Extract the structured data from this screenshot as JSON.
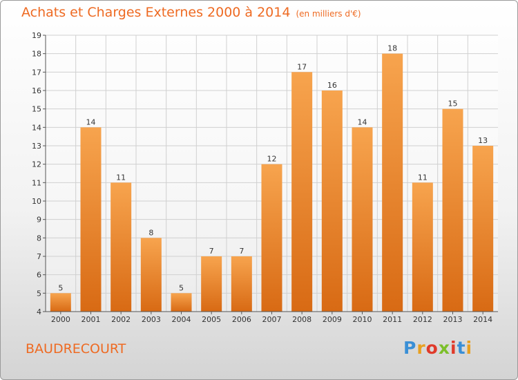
{
  "header": {
    "title": "Achats et Charges Externes 2000 à 2014",
    "unit": "(en milliers d'€)"
  },
  "footer": {
    "commune": "BAUDRECOURT",
    "logo_letters": [
      "P",
      "r",
      "o",
      "x",
      "i",
      "t",
      "i"
    ],
    "logo_colors": [
      "#3a8fd6",
      "#e8a020",
      "#e03a2a",
      "#7cbf2a",
      "#e03a2a",
      "#3a8fd6",
      "#e8a020"
    ]
  },
  "colors": {
    "accent": "#ee6a22",
    "bar_top": "#f7a44e",
    "bar_bottom": "#d86a14",
    "grid": "#d0d0d0"
  },
  "chart_data": {
    "type": "bar",
    "categories": [
      "2000",
      "2001",
      "2002",
      "2003",
      "2004",
      "2005",
      "2006",
      "2007",
      "2008",
      "2009",
      "2010",
      "2011",
      "2012",
      "2013",
      "2014"
    ],
    "values": [
      5,
      14,
      11,
      8,
      5,
      7,
      7,
      12,
      17,
      16,
      14,
      18,
      11,
      15,
      13
    ],
    "ylim": [
      4,
      19
    ],
    "yticks": [
      4,
      5,
      6,
      7,
      8,
      9,
      10,
      11,
      12,
      13,
      14,
      15,
      16,
      17,
      18,
      19
    ],
    "grid": true,
    "xlabel": "",
    "ylabel": ""
  }
}
